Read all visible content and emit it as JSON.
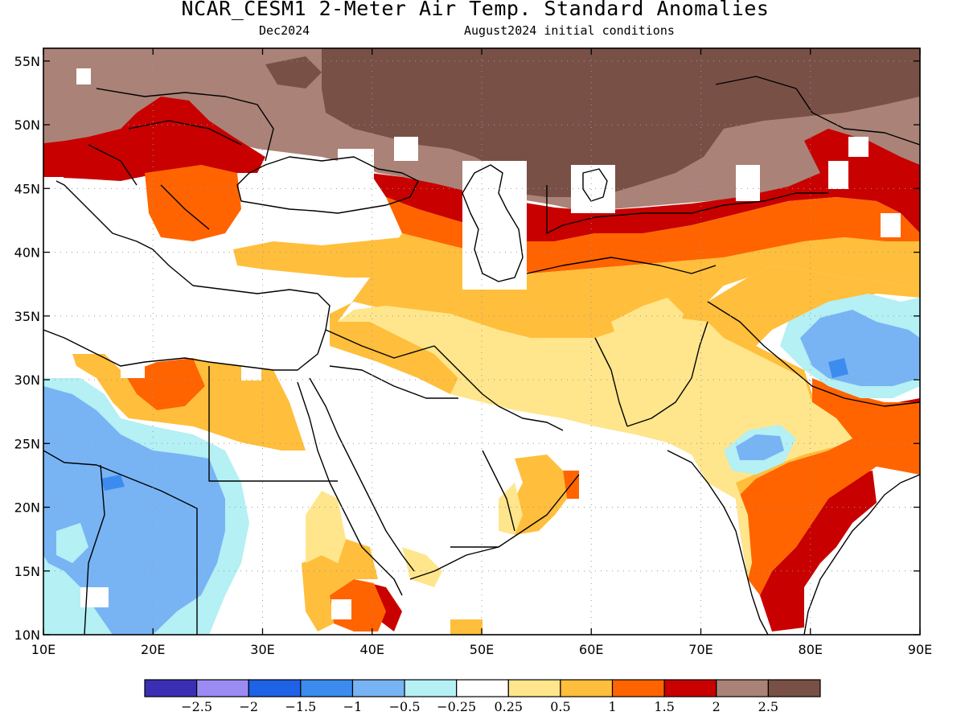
{
  "header": {
    "title": "NCAR_CESM1 2-Meter Air Temp. Standard Anomalies",
    "forecast_month": "Dec2024",
    "init_conditions": "August2024 initial conditions"
  },
  "map": {
    "lon_range": [
      10,
      90
    ],
    "lat_range": [
      10,
      56
    ],
    "lon_ticks": [
      "10E",
      "20E",
      "30E",
      "40E",
      "50E",
      "60E",
      "70E",
      "80E",
      "90E"
    ],
    "lat_ticks": [
      "10N",
      "15N",
      "20N",
      "25N",
      "30N",
      "35N",
      "40N",
      "45N",
      "50N",
      "55N"
    ],
    "grid": "dotted"
  },
  "legend": {
    "colors": [
      "#3a2fb4",
      "#9b8cf4",
      "#1e62e6",
      "#3c8cf0",
      "#78b4f4",
      "#b4f0f4",
      "#ffffff",
      "#ffe68c",
      "#ffbe3c",
      "#ff6400",
      "#c80000",
      "#aa8278",
      "#785046"
    ],
    "labels": [
      "−2.5",
      "−2",
      "−1.5",
      "−1",
      "−0.5",
      "−0.25",
      "0.25",
      "0.5",
      "1",
      "1.5",
      "2",
      "2.5"
    ]
  }
}
